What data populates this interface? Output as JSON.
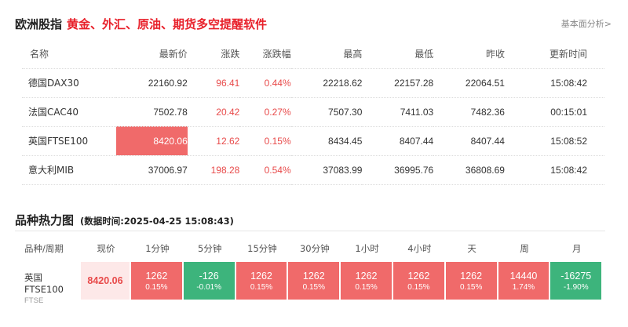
{
  "header": {
    "title": "欧洲股指",
    "promo": "黄金、外汇、原油、期货多空提醒软件",
    "more_link": "基本面分析>"
  },
  "index_table": {
    "columns": [
      "名称",
      "最新价",
      "涨跌",
      "涨跌幅",
      "最高",
      "最低",
      "昨收",
      "更新时间"
    ],
    "rows": [
      {
        "name": "德国DAX30",
        "last": "22160.92",
        "change": "96.41",
        "pct": "0.44%",
        "high": "22218.62",
        "low": "22157.28",
        "prev": "22064.51",
        "time": "15:08:42",
        "flash": false
      },
      {
        "name": "法国CAC40",
        "last": "7502.78",
        "change": "20.42",
        "pct": "0.27%",
        "high": "7507.30",
        "low": "7411.03",
        "prev": "7482.36",
        "time": "00:15:01",
        "flash": false
      },
      {
        "name": "英国FTSE100",
        "last": "8420.06",
        "change": "12.62",
        "pct": "0.15%",
        "high": "8434.45",
        "low": "8407.44",
        "prev": "8407.44",
        "time": "15:08:52",
        "flash": true
      },
      {
        "name": "意大利MIB",
        "last": "37006.97",
        "change": "198.28",
        "pct": "0.54%",
        "high": "37083.99",
        "low": "36995.76",
        "prev": "36808.69",
        "time": "15:08:42",
        "flash": false
      }
    ]
  },
  "heatmap": {
    "title": "品种热力图",
    "timestamp": "(数据时间:2025-04-25 15:08:43)",
    "col_symbol": "品种/周期",
    "col_price": "现价",
    "periods": [
      "1分钟",
      "5分钟",
      "15分钟",
      "30分钟",
      "1小时",
      "4小时",
      "天",
      "周",
      "月"
    ],
    "symbol": {
      "name": "英国FTSE100",
      "code": "FTSE",
      "price": "8420.06"
    },
    "cells": [
      {
        "value": "1262",
        "pct": "0.15%",
        "color": "#f06a6a"
      },
      {
        "value": "-126",
        "pct": "-0.01%",
        "color": "#3db47c"
      },
      {
        "value": "1262",
        "pct": "0.15%",
        "color": "#f06a6a"
      },
      {
        "value": "1262",
        "pct": "0.15%",
        "color": "#f06a6a"
      },
      {
        "value": "1262",
        "pct": "0.15%",
        "color": "#f06a6a"
      },
      {
        "value": "1262",
        "pct": "0.15%",
        "color": "#f06a6a"
      },
      {
        "value": "1262",
        "pct": "0.15%",
        "color": "#f06a6a"
      },
      {
        "value": "14440",
        "pct": "1.74%",
        "color": "#f06a6a"
      },
      {
        "value": "-16275",
        "pct": "-1.90%",
        "color": "#3db47c"
      }
    ]
  }
}
